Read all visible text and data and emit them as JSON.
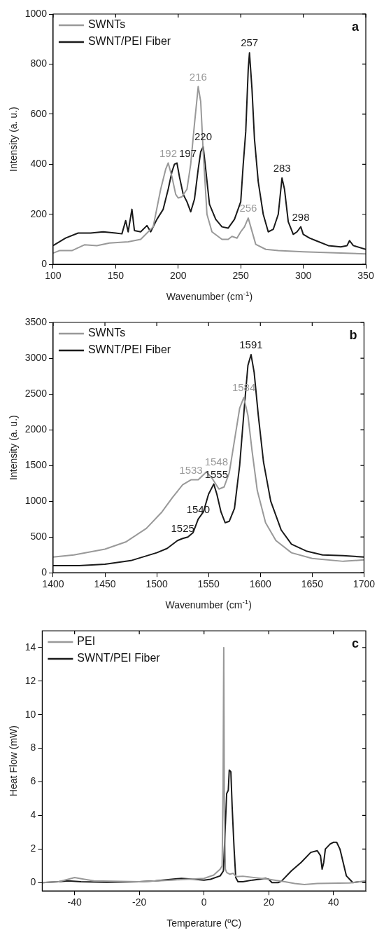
{
  "chart_data": [
    {
      "type": "line",
      "xlabel": "Wavenumber (cm$^{-1}$)",
      "ylabel": "Intensity (a. u.)",
      "xlim": [
        100,
        350
      ],
      "xticks": [
        100,
        150,
        200,
        250,
        300,
        350
      ],
      "ylim": [
        0,
        1000
      ],
      "yticks": [
        0,
        200,
        400,
        600,
        800,
        1000
      ],
      "legend": "top left",
      "x": [
        100,
        105,
        115,
        125,
        135,
        145,
        160,
        170,
        180,
        186,
        190,
        192,
        195,
        198,
        200,
        203,
        207,
        210,
        213,
        216,
        218,
        220,
        223,
        227,
        235,
        240,
        243,
        247,
        250,
        253,
        256,
        258,
        262,
        270,
        280,
        300,
        350
      ],
      "series": [
        {
          "name": "SWNTs",
          "color": "#999999",
          "values": [
            45,
            55,
            55,
            78,
            75,
            85,
            90,
            100,
            150,
            300,
            380,
            405,
            350,
            280,
            265,
            270,
            300,
            400,
            560,
            710,
            650,
            450,
            200,
            130,
            100,
            100,
            112,
            105,
            130,
            150,
            185,
            150,
            80,
            60,
            55,
            50,
            42
          ]
        },
        {
          "name": "SWNT/PEI Fiber",
          "color": "#1a1a1a",
          "x": [
            100,
            110,
            120,
            130,
            140,
            150,
            155,
            158,
            160,
            163,
            165,
            170,
            175,
            178,
            183,
            188,
            192,
            195,
            197,
            199,
            201,
            204,
            207,
            210,
            213,
            216,
            218,
            220,
            222,
            225,
            230,
            235,
            240,
            245,
            250,
            252,
            254,
            256,
            257,
            259,
            261,
            264,
            268,
            272,
            276,
            280,
            283,
            285,
            288,
            292,
            295,
            298,
            300,
            305,
            310,
            320,
            330,
            335,
            337,
            340,
            350
          ],
          "values": [
            75,
            105,
            125,
            125,
            130,
            125,
            122,
            175,
            130,
            220,
            135,
            130,
            155,
            130,
            180,
            220,
            300,
            370,
            400,
            405,
            350,
            280,
            250,
            210,
            260,
            380,
            450,
            470,
            380,
            240,
            180,
            150,
            145,
            180,
            250,
            400,
            530,
            780,
            845,
            700,
            500,
            330,
            200,
            130,
            140,
            200,
            345,
            300,
            170,
            120,
            130,
            150,
            120,
            105,
            95,
            75,
            70,
            75,
            95,
            75,
            60
          ]
        }
      ],
      "annotations": [
        "a",
        {
          "text": "192",
          "x": 192,
          "y": 405
        },
        {
          "text": "197",
          "x": 197,
          "y": 405
        },
        {
          "text": "216",
          "x": 216,
          "y": 710
        },
        {
          "text": "220",
          "x": 220,
          "y": 470
        },
        {
          "text": "257",
          "x": 257,
          "y": 845
        },
        {
          "text": "256",
          "x": 256,
          "y": 185
        },
        {
          "text": "283",
          "x": 283,
          "y": 345
        },
        {
          "text": "298",
          "x": 298,
          "y": 150
        }
      ]
    },
    {
      "type": "line",
      "xlabel": "Wavenumber (cm$^{-1}$)",
      "ylabel": "Intensity (a. u.)",
      "xlim": [
        1400,
        1700
      ],
      "xticks": [
        1400,
        1450,
        1500,
        1550,
        1600,
        1650,
        1700
      ],
      "ylim": [
        0,
        3500
      ],
      "yticks": [
        0,
        500,
        1000,
        1500,
        2000,
        2500,
        3000,
        3500
      ],
      "legend": "top left",
      "x": [
        1400,
        1420,
        1450,
        1470,
        1490,
        1505,
        1515,
        1525,
        1533,
        1540,
        1548,
        1553,
        1560,
        1565,
        1570,
        1575,
        1580,
        1584,
        1588,
        1592,
        1597,
        1605,
        1615,
        1630,
        1650,
        1680,
        1700
      ],
      "series": [
        {
          "name": "SWNTs",
          "color": "#999999",
          "values": [
            220,
            250,
            330,
            430,
            620,
            850,
            1050,
            1230,
            1300,
            1300,
            1410,
            1330,
            1170,
            1200,
            1400,
            1850,
            2300,
            2450,
            2200,
            1700,
            1150,
            700,
            450,
            280,
            200,
            160,
            180
          ]
        },
        {
          "name": "SWNT/PEI Fiber",
          "color": "#1a1a1a",
          "x": [
            1400,
            1425,
            1450,
            1475,
            1500,
            1510,
            1520,
            1525,
            1530,
            1535,
            1540,
            1545,
            1550,
            1555,
            1558,
            1562,
            1566,
            1570,
            1575,
            1580,
            1585,
            1588,
            1591,
            1594,
            1598,
            1603,
            1610,
            1620,
            1630,
            1645,
            1660,
            1680,
            1700
          ],
          "values": [
            100,
            100,
            120,
            170,
            280,
            340,
            450,
            480,
            500,
            560,
            750,
            850,
            1100,
            1240,
            1100,
            850,
            700,
            720,
            900,
            1500,
            2400,
            2900,
            3050,
            2800,
            2200,
            1550,
            1000,
            600,
            400,
            300,
            250,
            240,
            220
          ]
        }
      ],
      "annotations": [
        "b",
        {
          "text": "1533",
          "x": 1533,
          "y": 1300
        },
        {
          "text": "1548",
          "x": 1548,
          "y": 1410
        },
        {
          "text": "1555",
          "x": 1555,
          "y": 1240
        },
        {
          "text": "1584",
          "x": 1584,
          "y": 2450
        },
        {
          "text": "1591",
          "x": 1591,
          "y": 3050
        },
        {
          "text": "1540",
          "x": 1540,
          "y": 750
        },
        {
          "text": "1525",
          "x": 1525,
          "y": 480
        }
      ]
    },
    {
      "type": "line",
      "xlabel": "Temperature (ºC)",
      "ylabel": "Heat Flow (mW)",
      "xlim": [
        -50,
        50
      ],
      "xticks": [
        -40,
        -20,
        0,
        20,
        40
      ],
      "ylim": [
        -0.5,
        15
      ],
      "yticks": [
        0,
        2,
        4,
        6,
        8,
        10,
        12,
        14
      ],
      "legend": "top left",
      "series": [
        {
          "name": "PEI",
          "color": "#999999",
          "x": [
            -50,
            -45,
            -42,
            -40,
            -37,
            -34,
            -20,
            -10,
            -5,
            0,
            3,
            5,
            5.6,
            5.9,
            6.1,
            6.3,
            6.6,
            7,
            8,
            9,
            10,
            12,
            20,
            25,
            28,
            31,
            35,
            45,
            48,
            50
          ],
          "values": [
            0,
            0.05,
            0.2,
            0.3,
            0.2,
            0.1,
            0.05,
            0.15,
            0.2,
            0.25,
            0.45,
            0.8,
            1.0,
            6,
            14,
            4,
            0.8,
            0.6,
            0.5,
            0.55,
            0.35,
            0.38,
            0.2,
            0.05,
            -0.05,
            -0.12,
            -0.05,
            -0.02,
            0.05,
            0.1
          ]
        },
        {
          "name": "SWNT/PEI Fiber",
          "color": "#1a1a1a",
          "x": [
            -50,
            -45,
            -42,
            -38,
            -30,
            -20,
            -15,
            -10,
            -7,
            -3,
            0,
            2,
            5,
            6,
            6.5,
            7,
            7.5,
            7.8,
            8.3,
            8.7,
            9.3,
            9.8,
            10.5,
            12,
            15,
            19,
            20,
            21,
            23,
            24,
            27,
            30,
            33,
            35,
            36,
            36.5,
            37,
            37.5,
            39,
            40,
            41,
            42,
            43,
            44,
            45,
            46,
            48,
            50
          ],
          "values": [
            0,
            0.05,
            0.1,
            0.05,
            0.02,
            0.05,
            0.1,
            0.2,
            0.25,
            0.2,
            0.15,
            0.2,
            0.4,
            0.7,
            3,
            5.3,
            5.5,
            6.7,
            6.6,
            4.5,
            2,
            0.3,
            0.05,
            0.05,
            0.15,
            0.25,
            0.2,
            0,
            0,
            0.1,
            0.7,
            1.2,
            1.8,
            1.9,
            1.6,
            0.8,
            1.2,
            2,
            2.3,
            2.4,
            2.4,
            2,
            1.2,
            0.4,
            0.2,
            0,
            0.05,
            0.05
          ]
        }
      ],
      "annotations": [
        "c"
      ]
    }
  ]
}
